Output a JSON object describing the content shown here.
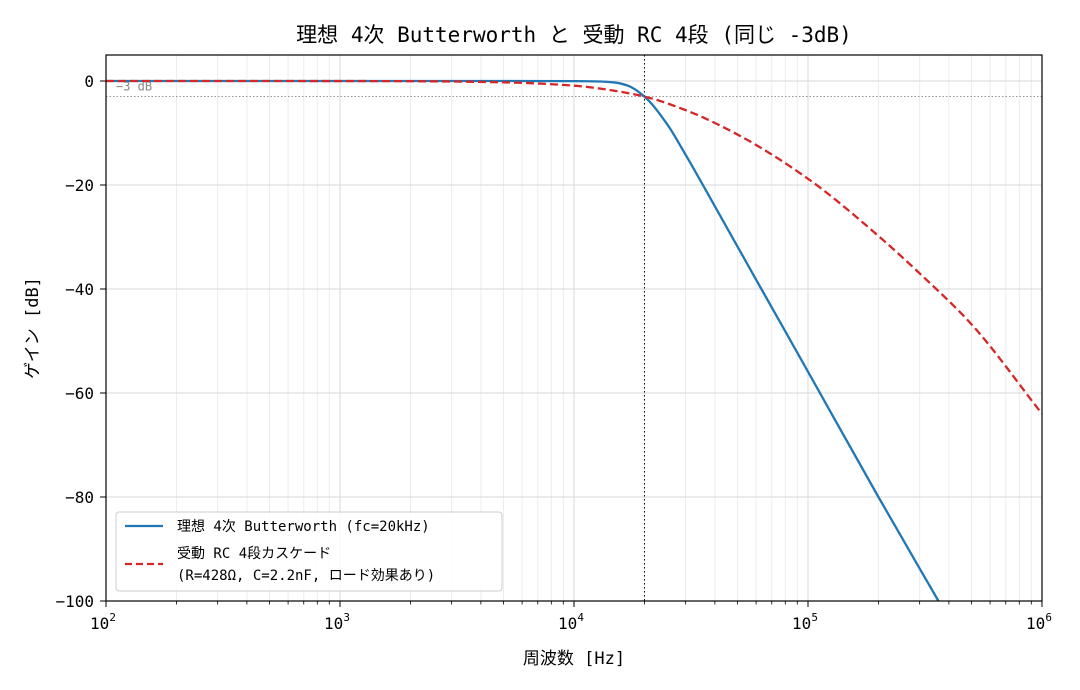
{
  "chart_data": {
    "type": "line",
    "title": "理想 4次 Butterworth と 受動 RC 4段 (同じ -3dB)",
    "xlabel": "周波数 [Hz]",
    "ylabel": "ゲイン [dB]",
    "xscale": "log",
    "xlim": [
      100,
      1000000
    ],
    "ylim": [
      -100,
      5
    ],
    "x_ticks": [
      {
        "base": "10",
        "exp": "2",
        "value": 100
      },
      {
        "base": "10",
        "exp": "3",
        "value": 1000
      },
      {
        "base": "10",
        "exp": "4",
        "value": 10000
      },
      {
        "base": "10",
        "exp": "5",
        "value": 100000
      },
      {
        "base": "10",
        "exp": "6",
        "value": 1000000
      }
    ],
    "y_ticks": [
      {
        "label": "0",
        "value": 0
      },
      {
        "label": "−20",
        "value": -20
      },
      {
        "label": "−40",
        "value": -40
      },
      {
        "label": "−60",
        "value": -60
      },
      {
        "label": "−80",
        "value": -80
      },
      {
        "label": "−100",
        "value": -100
      }
    ],
    "grid": true,
    "legend_position": "lower-left",
    "series": [
      {
        "name": "理想 4次 Butterworth (fc=20kHz)",
        "style": "solid",
        "color": "#1f77b4",
        "x": [
          100,
          1000,
          5000,
          10000,
          13000,
          15000,
          17000,
          20000,
          25000,
          30000,
          40000,
          60000,
          100000,
          200000,
          361000
        ],
        "y": [
          0,
          0,
          0,
          -0.02,
          -0.1,
          -0.3,
          -0.9,
          -3.0,
          -8.3,
          -14.2,
          -24.1,
          -38.2,
          -55.9,
          -80.0,
          -100
        ]
      },
      {
        "name": "受動 RC 4段カスケード",
        "name_line2": "(R=428Ω, C=2.2nF, ロード効果あり)",
        "style": "dashed",
        "color": "#d62728",
        "x": [
          100,
          1000,
          2000,
          5000,
          10000,
          15000,
          20000,
          30000,
          50000,
          100000,
          200000,
          300000,
          500000,
          1000000
        ],
        "y": [
          0,
          -0.01,
          -0.04,
          -0.25,
          -0.9,
          -1.9,
          -3.0,
          -5.6,
          -10.3,
          -18.8,
          -29.8,
          -37.0,
          -46.8,
          -64.0
        ]
      }
    ],
    "annotations": {
      "vline_x": 20000,
      "hline_y": -3,
      "hline_label": "−3 dB"
    }
  }
}
